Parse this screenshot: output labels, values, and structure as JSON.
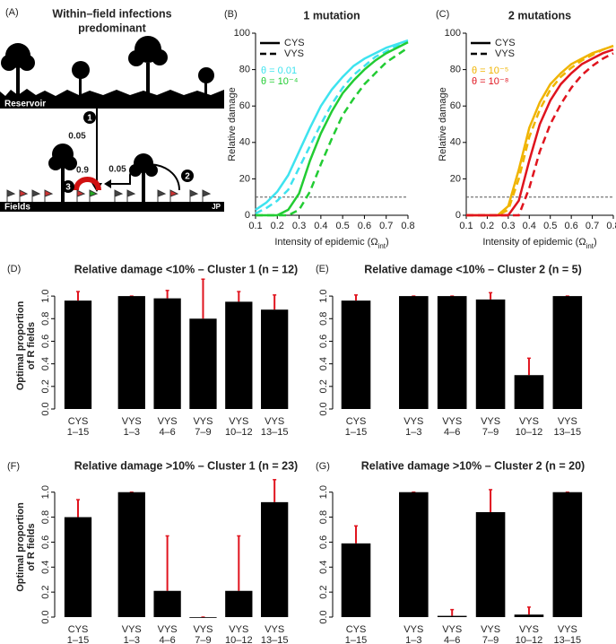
{
  "diagram": {
    "panel": "(A)",
    "title_lines": [
      "Within–field infections",
      "predominant"
    ],
    "reservoir": "Reservoir",
    "fields": "Fields",
    "corner": "JP",
    "arrow_reservoir": "0.05",
    "arrow_within": "0.9",
    "arrow_between": "0.05",
    "markers": [
      "1",
      "2",
      "3"
    ]
  },
  "chart_data": [
    {
      "type": "line",
      "panel": "(B)",
      "title": "1 mutation",
      "ylabel": "Relative damage",
      "xlabel": "Intensity of epidemic (Ω",
      "xlabel_sub": "int",
      "xlabel_end": ")",
      "x": [
        0.1,
        0.15,
        0.2,
        0.25,
        0.3,
        0.35,
        0.4,
        0.45,
        0.5,
        0.55,
        0.6,
        0.65,
        0.7,
        0.75,
        0.8
      ],
      "xlim": [
        0.1,
        0.8
      ],
      "xticks": [
        0.1,
        0.2,
        0.3,
        0.4,
        0.5,
        0.6,
        0.7,
        0.8
      ],
      "ylim": [
        0,
        100
      ],
      "yticks": [
        0,
        20,
        40,
        60,
        80,
        100
      ],
      "hline": 10,
      "legend_lines": [
        {
          "name": "CYS",
          "dashed": false
        },
        {
          "name": "VYS",
          "dashed": true
        }
      ],
      "legend_colors": [
        {
          "name": "θ = 0.01",
          "color": "#3ee3ef"
        },
        {
          "name": "θ = 10⁻⁴",
          "color": "#22cc33"
        }
      ],
      "series": [
        {
          "color": "#3ee3ef",
          "dashed": false,
          "values": [
            3,
            7,
            13,
            22,
            35,
            48,
            60,
            69,
            76,
            82,
            86,
            89,
            92,
            94,
            96
          ]
        },
        {
          "color": "#3ee3ef",
          "dashed": true,
          "values": [
            1,
            4,
            8,
            14,
            26,
            38,
            50,
            61,
            70,
            77,
            82,
            87,
            90,
            93,
            95
          ]
        },
        {
          "color": "#22cc33",
          "dashed": false,
          "values": [
            0,
            0,
            0,
            3,
            12,
            30,
            45,
            57,
            67,
            74,
            80,
            85,
            89,
            92,
            95
          ]
        },
        {
          "color": "#22cc33",
          "dashed": true,
          "values": [
            0,
            0,
            0,
            0,
            3,
            13,
            28,
            42,
            55,
            64,
            72,
            78,
            84,
            88,
            92
          ]
        }
      ]
    },
    {
      "type": "line",
      "panel": "(C)",
      "title": "2 mutations",
      "ylabel": "Relative damage",
      "xlabel": "Intensity of epidemic (Ω",
      "xlabel_sub": "int",
      "xlabel_end": ")",
      "x": [
        0.1,
        0.15,
        0.2,
        0.25,
        0.3,
        0.35,
        0.4,
        0.45,
        0.5,
        0.55,
        0.6,
        0.65,
        0.7,
        0.75,
        0.8
      ],
      "xlim": [
        0.1,
        0.8
      ],
      "xticks": [
        0.1,
        0.2,
        0.3,
        0.4,
        0.5,
        0.6,
        0.7,
        0.8
      ],
      "ylim": [
        0,
        100
      ],
      "yticks": [
        0,
        20,
        40,
        60,
        80,
        100
      ],
      "hline": 10,
      "legend_lines": [
        {
          "name": "CYS",
          "dashed": false
        },
        {
          "name": "VYS",
          "dashed": true
        }
      ],
      "legend_colors": [
        {
          "name": "θ = 10⁻⁵",
          "color": "#f0b400"
        },
        {
          "name": "θ = 10⁻⁸",
          "color": "#e0141e"
        }
      ],
      "series": [
        {
          "color": "#f0b400",
          "dashed": false,
          "values": [
            0,
            0,
            0,
            0,
            5,
            25,
            48,
            62,
            72,
            78,
            83,
            86,
            89,
            91,
            93
          ]
        },
        {
          "color": "#f0b400",
          "dashed": true,
          "values": [
            0,
            0,
            0,
            0,
            3,
            20,
            43,
            58,
            69,
            76,
            81,
            85,
            88,
            91,
            93
          ]
        },
        {
          "color": "#e0141e",
          "dashed": false,
          "values": [
            0,
            0,
            0,
            0,
            0,
            8,
            30,
            50,
            63,
            72,
            78,
            83,
            86,
            89,
            91
          ]
        },
        {
          "color": "#e0141e",
          "dashed": true,
          "values": [
            0,
            0,
            0,
            0,
            0,
            0,
            15,
            35,
            50,
            61,
            70,
            77,
            82,
            86,
            89
          ]
        }
      ]
    },
    {
      "type": "bar",
      "panel": "(D)",
      "title": "Relative damage <10% – Cluster 1 (n = 12)",
      "ylabel_lines": [
        "Optimal proportion",
        "of R fields"
      ],
      "categories": [
        [
          "CYS",
          "1–15"
        ],
        [
          "VYS",
          "1–3"
        ],
        [
          "VYS",
          "4–6"
        ],
        [
          "VYS",
          "7–9"
        ],
        [
          "VYS",
          "10–12"
        ],
        [
          "VYS",
          "13–15"
        ]
      ],
      "values": [
        0.96,
        1.0,
        0.98,
        0.8,
        0.95,
        0.88
      ],
      "errors": [
        0.08,
        0,
        0.07,
        0.35,
        0.09,
        0.13
      ],
      "color": "#000000",
      "error_color": "#e0141e",
      "ylim": [
        0,
        1.12
      ],
      "yticks": [
        {
          "value": 0,
          "label": "0.0"
        },
        0.2,
        0.4,
        0.6,
        0.8,
        {
          "value": 1,
          "label": "1.0"
        }
      ]
    },
    {
      "type": "bar",
      "panel": "(E)",
      "title": "Relative damage <10% – Cluster 2 (n = 5)",
      "categories": [
        [
          "CYS",
          "1–15"
        ],
        [
          "VYS",
          "1–3"
        ],
        [
          "VYS",
          "4–6"
        ],
        [
          "VYS",
          "7–9"
        ],
        [
          "VYS",
          "10–12"
        ],
        [
          "VYS",
          "13–15"
        ]
      ],
      "values": [
        0.96,
        1.0,
        1.0,
        0.97,
        0.3,
        1.0
      ],
      "errors": [
        0.05,
        0,
        0,
        0.06,
        0.15,
        0
      ],
      "color": "#000000",
      "error_color": "#e0141e",
      "ylim": [
        0,
        1.12
      ],
      "yticks": [
        {
          "value": 0,
          "label": "0.0"
        },
        0.2,
        0.4,
        0.6,
        0.8,
        {
          "value": 1,
          "label": "1.0"
        }
      ]
    },
    {
      "type": "bar",
      "panel": "(F)",
      "title": "Relative damage >10% – Cluster 1 (n = 23)",
      "ylabel_lines": [
        "Optimal proportion",
        "of R fields"
      ],
      "categories": [
        [
          "CYS",
          "1–15"
        ],
        [
          "VYS",
          "1–3"
        ],
        [
          "VYS",
          "4–6"
        ],
        [
          "VYS",
          "7–9"
        ],
        [
          "VYS",
          "10–12"
        ],
        [
          "VYS",
          "13–15"
        ]
      ],
      "values": [
        0.8,
        1.0,
        0.21,
        0,
        0.21,
        0.92
      ],
      "errors": [
        0.14,
        0,
        0.44,
        0,
        0.44,
        0.18
      ],
      "color": "#000000",
      "error_color": "#e0141e",
      "ylim": [
        0,
        1.12
      ],
      "yticks": [
        {
          "value": 0,
          "label": "0.0"
        },
        0.2,
        0.4,
        0.6,
        0.8,
        {
          "value": 1,
          "label": "1.0"
        }
      ]
    },
    {
      "type": "bar",
      "panel": "(G)",
      "title": "Relative damage >10% – Cluster 2 (n = 20)",
      "categories": [
        [
          "CYS",
          "1–15"
        ],
        [
          "VYS",
          "1–3"
        ],
        [
          "VYS",
          "4–6"
        ],
        [
          "VYS",
          "7–9"
        ],
        [
          "VYS",
          "10–12"
        ],
        [
          "VYS",
          "13–15"
        ]
      ],
      "values": [
        0.59,
        1.0,
        0.01,
        0.84,
        0.02,
        1.0
      ],
      "errors": [
        0.14,
        0,
        0.05,
        0.18,
        0.06,
        0
      ],
      "color": "#000000",
      "error_color": "#e0141e",
      "ylim": [
        0,
        1.12
      ],
      "yticks": [
        {
          "value": 0,
          "label": "0.0"
        },
        0.2,
        0.4,
        0.6,
        0.8,
        {
          "value": 1,
          "label": "1.0"
        }
      ]
    }
  ]
}
